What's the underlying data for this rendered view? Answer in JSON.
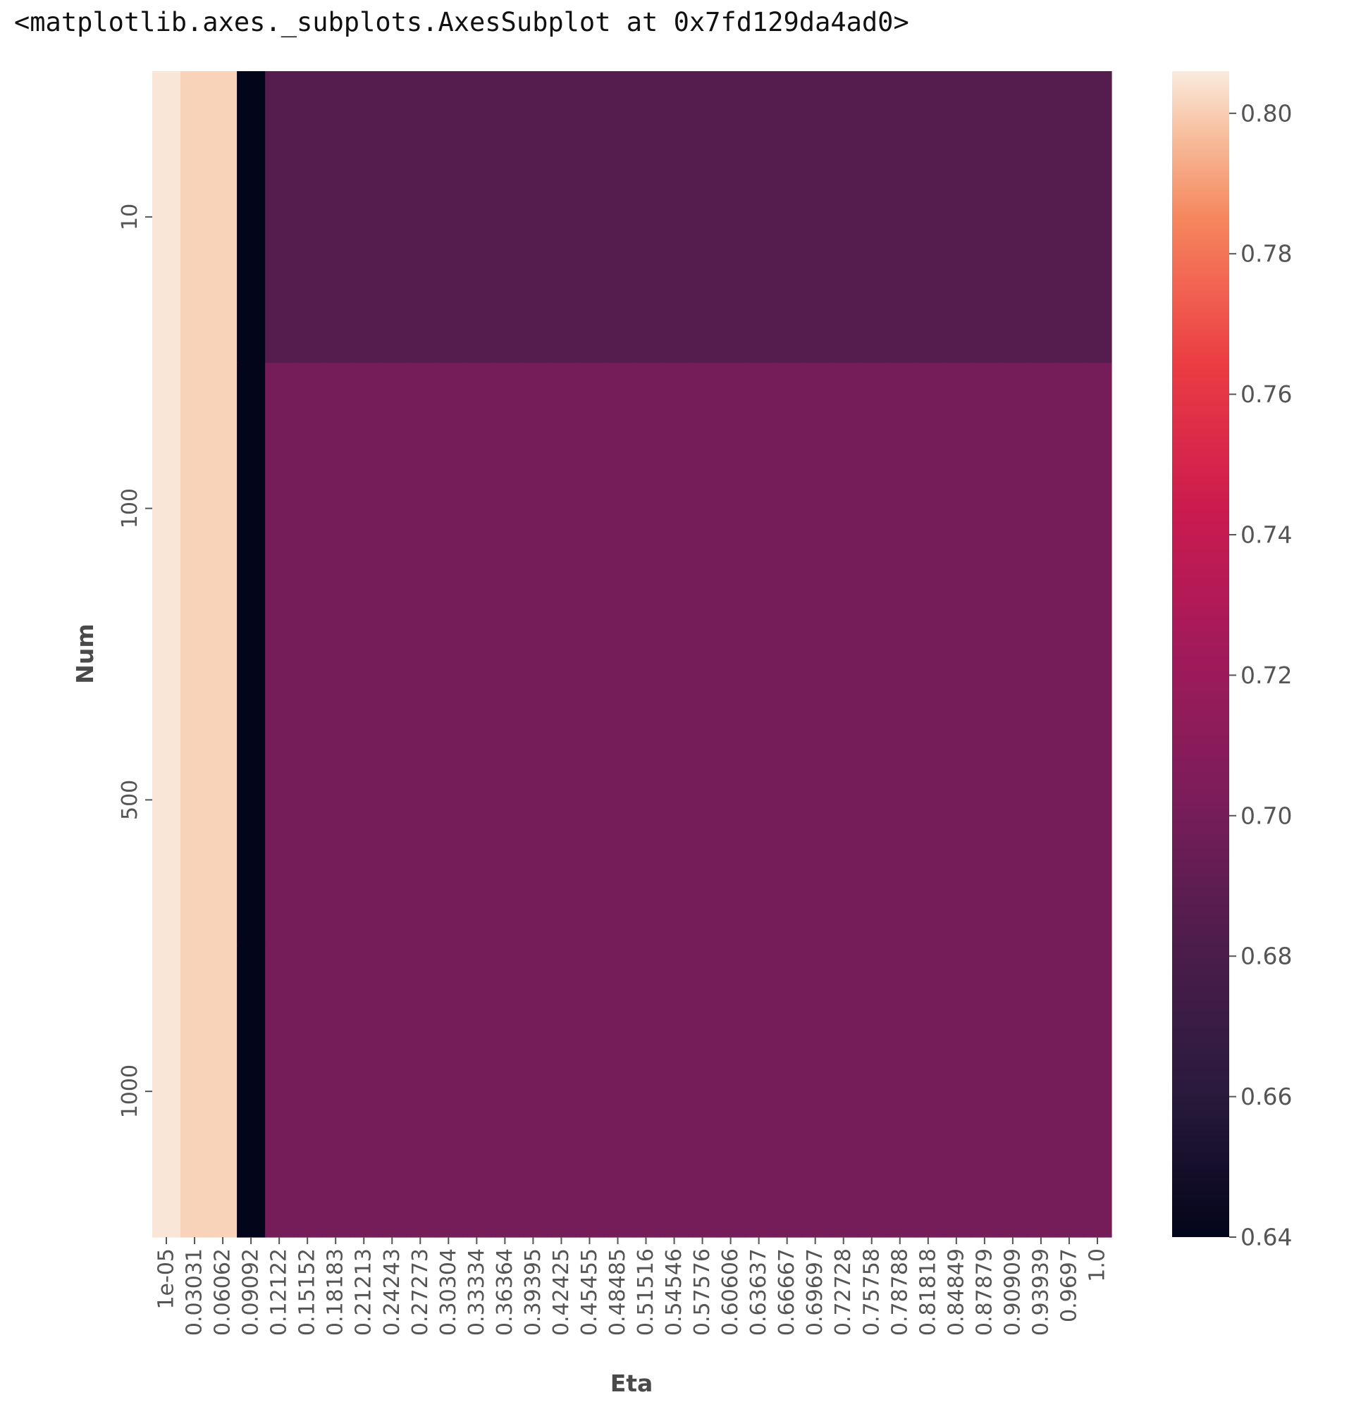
{
  "output_repr": "<matplotlib.axes._subplots.AxesSubplot at 0x7fd129da4ad0>",
  "chart_data": {
    "type": "heatmap",
    "title": "",
    "xlabel": "Eta",
    "ylabel": "Num",
    "x_ticklabels": [
      "1e-05",
      "0.03031",
      "0.06062",
      "0.09092",
      "0.12122",
      "0.15152",
      "0.18183",
      "0.21213",
      "0.24243",
      "0.27273",
      "0.30304",
      "0.33334",
      "0.36364",
      "0.39395",
      "0.42425",
      "0.45455",
      "0.48485",
      "0.51516",
      "0.54546",
      "0.57576",
      "0.60606",
      "0.63637",
      "0.66667",
      "0.69697",
      "0.72728",
      "0.75758",
      "0.78788",
      "0.81818",
      "0.84849",
      "0.87879",
      "0.90909",
      "0.93939",
      "0.9697",
      "1.0"
    ],
    "y_ticklabels": [
      "10",
      "100",
      "500",
      "1000"
    ],
    "rows": [
      "10",
      "100",
      "500",
      "1000"
    ],
    "values": [
      [
        0.805,
        0.801,
        0.801,
        0.64,
        0.685,
        0.685,
        0.685,
        0.685,
        0.685,
        0.685,
        0.685,
        0.685,
        0.685,
        0.685,
        0.685,
        0.685,
        0.685,
        0.685,
        0.685,
        0.685,
        0.685,
        0.685,
        0.685,
        0.685,
        0.685,
        0.685,
        0.685,
        0.685,
        0.685,
        0.685,
        0.685,
        0.685,
        0.685,
        0.685
      ],
      [
        0.805,
        0.801,
        0.801,
        0.64,
        0.7,
        0.7,
        0.7,
        0.7,
        0.7,
        0.7,
        0.7,
        0.7,
        0.7,
        0.7,
        0.7,
        0.7,
        0.7,
        0.7,
        0.7,
        0.7,
        0.7,
        0.7,
        0.7,
        0.7,
        0.7,
        0.7,
        0.7,
        0.7,
        0.7,
        0.7,
        0.7,
        0.7,
        0.7,
        0.7
      ],
      [
        0.805,
        0.801,
        0.801,
        0.64,
        0.7,
        0.7,
        0.7,
        0.7,
        0.7,
        0.7,
        0.7,
        0.7,
        0.7,
        0.7,
        0.7,
        0.7,
        0.7,
        0.7,
        0.7,
        0.7,
        0.7,
        0.7,
        0.7,
        0.7,
        0.7,
        0.7,
        0.7,
        0.7,
        0.7,
        0.7,
        0.7,
        0.7,
        0.7,
        0.7
      ],
      [
        0.805,
        0.801,
        0.801,
        0.64,
        0.7,
        0.7,
        0.7,
        0.7,
        0.7,
        0.7,
        0.7,
        0.7,
        0.7,
        0.7,
        0.7,
        0.7,
        0.7,
        0.7,
        0.7,
        0.7,
        0.7,
        0.7,
        0.7,
        0.7,
        0.7,
        0.7,
        0.7,
        0.7,
        0.7,
        0.7,
        0.7,
        0.7,
        0.7,
        0.7
      ]
    ],
    "colorbar": {
      "colormap": "rocket",
      "vmin": 0.64,
      "vmax": 0.806,
      "ticks": [
        "0.64",
        "0.66",
        "0.68",
        "0.70",
        "0.72",
        "0.74",
        "0.76",
        "0.78",
        "0.80"
      ]
    },
    "grid": false
  }
}
